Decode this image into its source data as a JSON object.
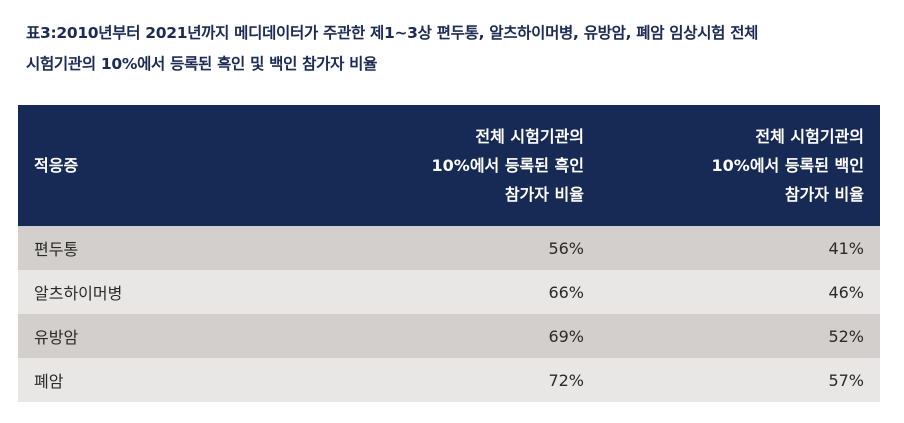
{
  "caption": {
    "line1": "표3:2010년부터 2021년까지 메디데이터가 주관한 제1~3상 편두통, 알츠하이머병, 유방암, 폐암 임상시험 전체",
    "line2": "시험기관의 10%에서 등록된 흑인 및 백인 참가자 비율"
  },
  "table": {
    "header": {
      "indication": "적응증",
      "black_line1": "전체 시험기관의",
      "black_line2": "10%에서 등록된 흑인",
      "black_line3": "참가자 비율",
      "white_line1": "전체 시험기관의",
      "white_line2": "10%에서 등록된 백인",
      "white_line3": "참가자 비율"
    },
    "rows": [
      {
        "indication": "편두통",
        "black": "56%",
        "white": "41%"
      },
      {
        "indication": "알츠하이머병",
        "black": "66%",
        "white": "46%"
      },
      {
        "indication": "유방암",
        "black": "69%",
        "white": "52%"
      },
      {
        "indication": "폐암",
        "black": "72%",
        "white": "57%"
      }
    ]
  }
}
